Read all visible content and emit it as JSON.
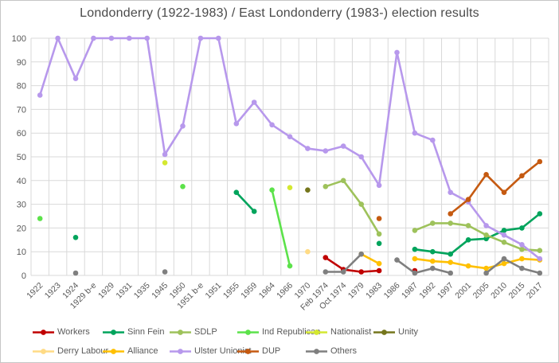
{
  "title": "Londonderry (1922-1983) / East Londonderry (1983-) election results",
  "colors": {
    "background": "#ffffff",
    "figure_border": "#c6c6c6",
    "gridline": "#d9d9d9",
    "axis_text": "#595959",
    "title_text": "#4a4a4a"
  },
  "chart_data": {
    "type": "line",
    "title": "Londonderry (1922-1983) / East Londonderry (1983-) election results",
    "xlabel": "",
    "ylabel": "",
    "grid": true,
    "legend_position": "bottom",
    "y_axis": {
      "min": 0,
      "max": 100,
      "step": 10,
      "tick_labels": [
        "0",
        "10",
        "20",
        "30",
        "40",
        "50",
        "60",
        "70",
        "80",
        "90",
        "100"
      ]
    },
    "categories": [
      "1922",
      "1923",
      "1924",
      "1929 b-e",
      "1929",
      "1931",
      "1935",
      "1945",
      "1950",
      "1951 b-e",
      "1951",
      "1955",
      "1959",
      "1964",
      "1966",
      "1970",
      "Feb 1974",
      "Oct 1974",
      "1979",
      "1983",
      "1986",
      "1987",
      "1992",
      "1997",
      "2001",
      "2005",
      "2010",
      "2015",
      "2017"
    ],
    "series": [
      {
        "name": "Workers",
        "color": "#c00000",
        "values": [
          null,
          null,
          null,
          null,
          null,
          null,
          null,
          null,
          null,
          null,
          null,
          null,
          null,
          null,
          null,
          null,
          7.5,
          2.5,
          1.5,
          2,
          null,
          2,
          null,
          null,
          null,
          null,
          null,
          null,
          null
        ]
      },
      {
        "name": "Sinn Fein",
        "color": "#00a45c",
        "values": [
          null,
          null,
          16,
          null,
          null,
          null,
          null,
          null,
          null,
          null,
          null,
          35,
          27,
          null,
          null,
          null,
          null,
          null,
          null,
          13.5,
          null,
          11,
          10,
          9,
          15,
          15.5,
          19,
          20,
          26
        ]
      },
      {
        "name": "SDLP",
        "color": "#9ec25b",
        "values": [
          null,
          null,
          null,
          null,
          null,
          null,
          null,
          null,
          null,
          null,
          null,
          null,
          null,
          null,
          null,
          null,
          37.5,
          40,
          30,
          17.5,
          null,
          19,
          22,
          22,
          21,
          17,
          14,
          11,
          10.5
        ]
      },
      {
        "name": "Ind Republican",
        "color": "#5ce24a",
        "values": [
          24,
          null,
          null,
          null,
          null,
          null,
          null,
          null,
          37.5,
          null,
          null,
          null,
          null,
          36,
          4,
          null,
          null,
          null,
          null,
          null,
          null,
          null,
          null,
          null,
          null,
          null,
          null,
          null,
          null
        ]
      },
      {
        "name": "Nationalist",
        "color": "#d4e830",
        "values": [
          null,
          null,
          null,
          null,
          null,
          null,
          null,
          47.5,
          null,
          null,
          null,
          null,
          null,
          null,
          37,
          null,
          null,
          null,
          null,
          null,
          null,
          null,
          null,
          null,
          null,
          null,
          null,
          null,
          null
        ]
      },
      {
        "name": "Unity",
        "color": "#75761c",
        "values": [
          null,
          null,
          null,
          null,
          null,
          null,
          null,
          null,
          null,
          null,
          null,
          null,
          null,
          null,
          null,
          36,
          null,
          null,
          null,
          null,
          null,
          null,
          null,
          null,
          null,
          null,
          null,
          null,
          null
        ]
      },
      {
        "name": "Derry Labour",
        "color": "#ffdb85",
        "values": [
          null,
          null,
          null,
          null,
          null,
          null,
          null,
          null,
          null,
          null,
          null,
          null,
          null,
          null,
          null,
          10,
          null,
          null,
          null,
          null,
          null,
          null,
          null,
          null,
          null,
          null,
          null,
          null,
          null
        ]
      },
      {
        "name": "Alliance",
        "color": "#ffc000",
        "values": [
          null,
          null,
          null,
          null,
          null,
          null,
          null,
          null,
          null,
          null,
          null,
          null,
          null,
          null,
          null,
          null,
          null,
          null,
          9,
          5,
          null,
          7,
          6,
          5.5,
          4,
          3,
          5,
          7,
          6.5
        ]
      },
      {
        "name": "Ulster Unionist",
        "color": "#b798ec",
        "values": [
          76,
          100,
          83,
          100,
          100,
          100,
          100,
          51,
          63,
          100,
          100,
          64,
          73,
          63.5,
          58.5,
          53.5,
          52.5,
          54.5,
          50,
          38,
          94,
          60,
          57,
          35,
          31,
          21,
          17,
          13,
          7
        ]
      },
      {
        "name": "DUP",
        "color": "#c55a11",
        "values": [
          null,
          null,
          null,
          null,
          null,
          null,
          null,
          null,
          null,
          null,
          null,
          null,
          null,
          null,
          null,
          null,
          null,
          null,
          null,
          24,
          null,
          null,
          null,
          26,
          32,
          42.5,
          35,
          42,
          48
        ]
      },
      {
        "name": "Others",
        "color": "#7f7f7f",
        "values": [
          null,
          null,
          1,
          null,
          null,
          null,
          null,
          1.5,
          null,
          null,
          null,
          null,
          null,
          null,
          null,
          null,
          1.5,
          1.5,
          9,
          null,
          6.5,
          1,
          3,
          1,
          null,
          1,
          7,
          3,
          1
        ]
      }
    ]
  }
}
